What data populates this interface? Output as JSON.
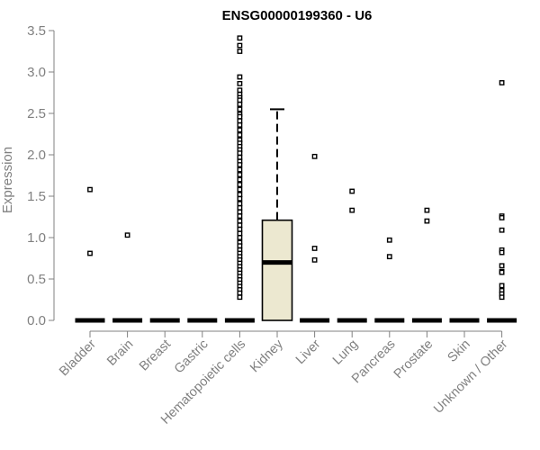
{
  "chart_data": {
    "type": "box",
    "title": "ENSG00000199360 - U6",
    "ylabel": "Expression",
    "xlabel": "",
    "ylim": [
      0,
      3.5
    ],
    "yticks": [
      "0.0",
      "0.5",
      "1.0",
      "1.5",
      "2.0",
      "2.5",
      "3.0",
      "3.5"
    ],
    "box_fill": "#ECE8D0",
    "axis_color": "#808080",
    "categories": [
      "Bladder",
      "Brain",
      "Breast",
      "Gastric",
      "Hematopoietic cells",
      "Kidney",
      "Liver",
      "Lung",
      "Pancreas",
      "Prostate",
      "Skin",
      "Unknown / Other"
    ],
    "boxes": [
      {
        "min": 0,
        "q1": 0,
        "median": 0,
        "q3": 0,
        "max": 0,
        "outliers": [
          1.58,
          0.81
        ]
      },
      {
        "min": 0,
        "q1": 0,
        "median": 0,
        "q3": 0,
        "max": 0,
        "outliers": [
          1.03
        ]
      },
      {
        "min": 0,
        "q1": 0,
        "median": 0,
        "q3": 0,
        "max": 0,
        "outliers": []
      },
      {
        "min": 0,
        "q1": 0,
        "median": 0,
        "q3": 0,
        "max": 0,
        "outliers": []
      },
      {
        "min": 0,
        "q1": 0,
        "median": 0,
        "q3": 0,
        "max": 0,
        "outliers": [
          3.41,
          3.32,
          3.25,
          2.94,
          2.86,
          2.78,
          2.73,
          2.69,
          2.66,
          2.61,
          2.55,
          2.49,
          2.46,
          2.41,
          2.36,
          2.3,
          2.24,
          2.18,
          2.14,
          2.1,
          2.06,
          2.02,
          1.97,
          1.92,
          1.88,
          1.82,
          1.76,
          1.7,
          1.64,
          1.58,
          1.52,
          1.47,
          1.41,
          1.36,
          1.31,
          1.26,
          1.2,
          1.15,
          1.1,
          1.05,
          1.0,
          0.94,
          0.9,
          0.85,
          0.81,
          0.77,
          0.73,
          0.69,
          0.65,
          0.61,
          0.57,
          0.53,
          0.49,
          0.45,
          0.41,
          0.37,
          0.33,
          0.28
        ]
      },
      {
        "min": 0,
        "q1": 0,
        "median": 0.7,
        "q3": 1.21,
        "max": 2.55,
        "outliers": []
      },
      {
        "min": 0,
        "q1": 0,
        "median": 0,
        "q3": 0,
        "max": 0,
        "outliers": [
          1.98,
          0.87,
          0.73
        ]
      },
      {
        "min": 0,
        "q1": 0,
        "median": 0,
        "q3": 0,
        "max": 0,
        "outliers": [
          1.56,
          1.33
        ]
      },
      {
        "min": 0,
        "q1": 0,
        "median": 0,
        "q3": 0,
        "max": 0,
        "outliers": [
          0.97,
          0.77
        ]
      },
      {
        "min": 0,
        "q1": 0,
        "median": 0,
        "q3": 0,
        "max": 0,
        "outliers": [
          1.33,
          1.2
        ]
      },
      {
        "min": 0,
        "q1": 0,
        "median": 0,
        "q3": 0,
        "max": 0,
        "outliers": []
      },
      {
        "min": 0,
        "q1": 0,
        "median": 0,
        "q3": 0,
        "max": 0,
        "outliers": [
          2.87,
          1.26,
          1.24,
          1.09,
          0.85,
          0.82,
          0.66,
          0.59,
          0.58,
          0.42,
          0.36,
          0.32,
          0.28
        ]
      }
    ],
    "grid": false,
    "legend": "none"
  }
}
